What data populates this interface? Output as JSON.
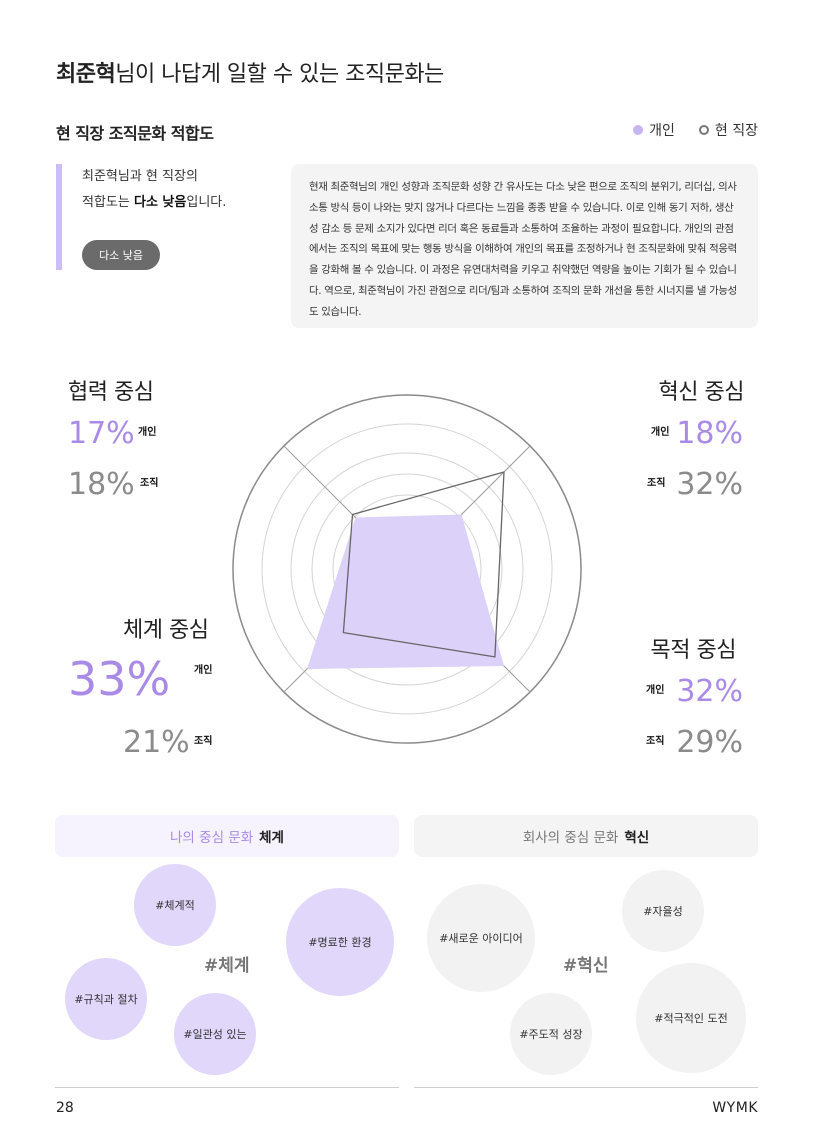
{
  "title": {
    "name": "최준혁",
    "rest": "님이 나답게 일할 수 있는 조직문화는"
  },
  "fit": {
    "heading": "현 직장 조직문화 적합도",
    "legend_personal": "개인",
    "legend_company": "현 직장",
    "summary_line1": "최준혁님과 현 직장의",
    "summary_pre": "적합도는 ",
    "summary_emph": "다소 낮음",
    "summary_post": "입니다.",
    "badge": "다소 낮음",
    "description": "현재 최준혁님의 개인 성향과 조직문화 성향 간 유사도는 다소 낮은 편으로 조직의 분위기, 리더십, 의사소통 방식 등이 나와는 맞지 않거나 다르다는 느낌을 종종 받을 수 있습니다. 이로 인해 동기 저하, 생산성 감소 등 문제 소지가 있다면 리더 혹은 동료들과 소통하여 조율하는 과정이 필요합니다. 개인의 관점에서는 조직의 목표에 맞는 행동 방식을 이해하여 개인의 목표를 조정하거나 현 조직문화에 맞춰 적응력을 강화해 볼 수 있습니다. 이 과정은 유연대처력을 키우고 취약했던 역량을 높이는 기회가 될 수 있습니다. 역으로, 최준혁님이 가진 관점으로 리더/팀과 소통하여 조직의 문화 개선을 통한 시너지를 낼 가능성도 있습니다."
  },
  "quadrants": {
    "cooperation": {
      "title": "협력 중심",
      "personal": "17%",
      "company": "18%",
      "personal_tag": "개인",
      "company_tag": "조직"
    },
    "innovation": {
      "title": "혁신 중심",
      "personal": "18%",
      "company": "32%",
      "personal_tag": "개인",
      "company_tag": "조직"
    },
    "system": {
      "title": "체계 중심",
      "personal": "33%",
      "company": "21%",
      "personal_tag": "개인",
      "company_tag": "조직"
    },
    "purpose": {
      "title": "목적 중심",
      "personal": "32%",
      "company": "29%",
      "personal_tag": "개인",
      "company_tag": "조직"
    }
  },
  "radar": {
    "values_personal": {
      "cooperation": 17,
      "innovation": 18,
      "purpose": 32,
      "system": 33
    },
    "values_company": {
      "cooperation": 18,
      "innovation": 32,
      "purpose": 29,
      "system": 21
    },
    "color_personal": "#dcd1f9",
    "color_company": "#666666"
  },
  "my_culture": {
    "label": "나의 중심 문화",
    "value": "체계",
    "center_tag": "#체계",
    "tags": [
      "#체계적",
      "#명료한 환경",
      "#규칙과 절차",
      "#일관성 있는"
    ]
  },
  "company_culture": {
    "label": "회사의 중심 문화",
    "value": "혁신",
    "center_tag": "#혁신",
    "tags": [
      "#자율성",
      "#새로운 아이디어",
      "#적극적인 도전",
      "#주도적 성장"
    ]
  },
  "footer": {
    "page": "28",
    "brand": "WYMK"
  }
}
